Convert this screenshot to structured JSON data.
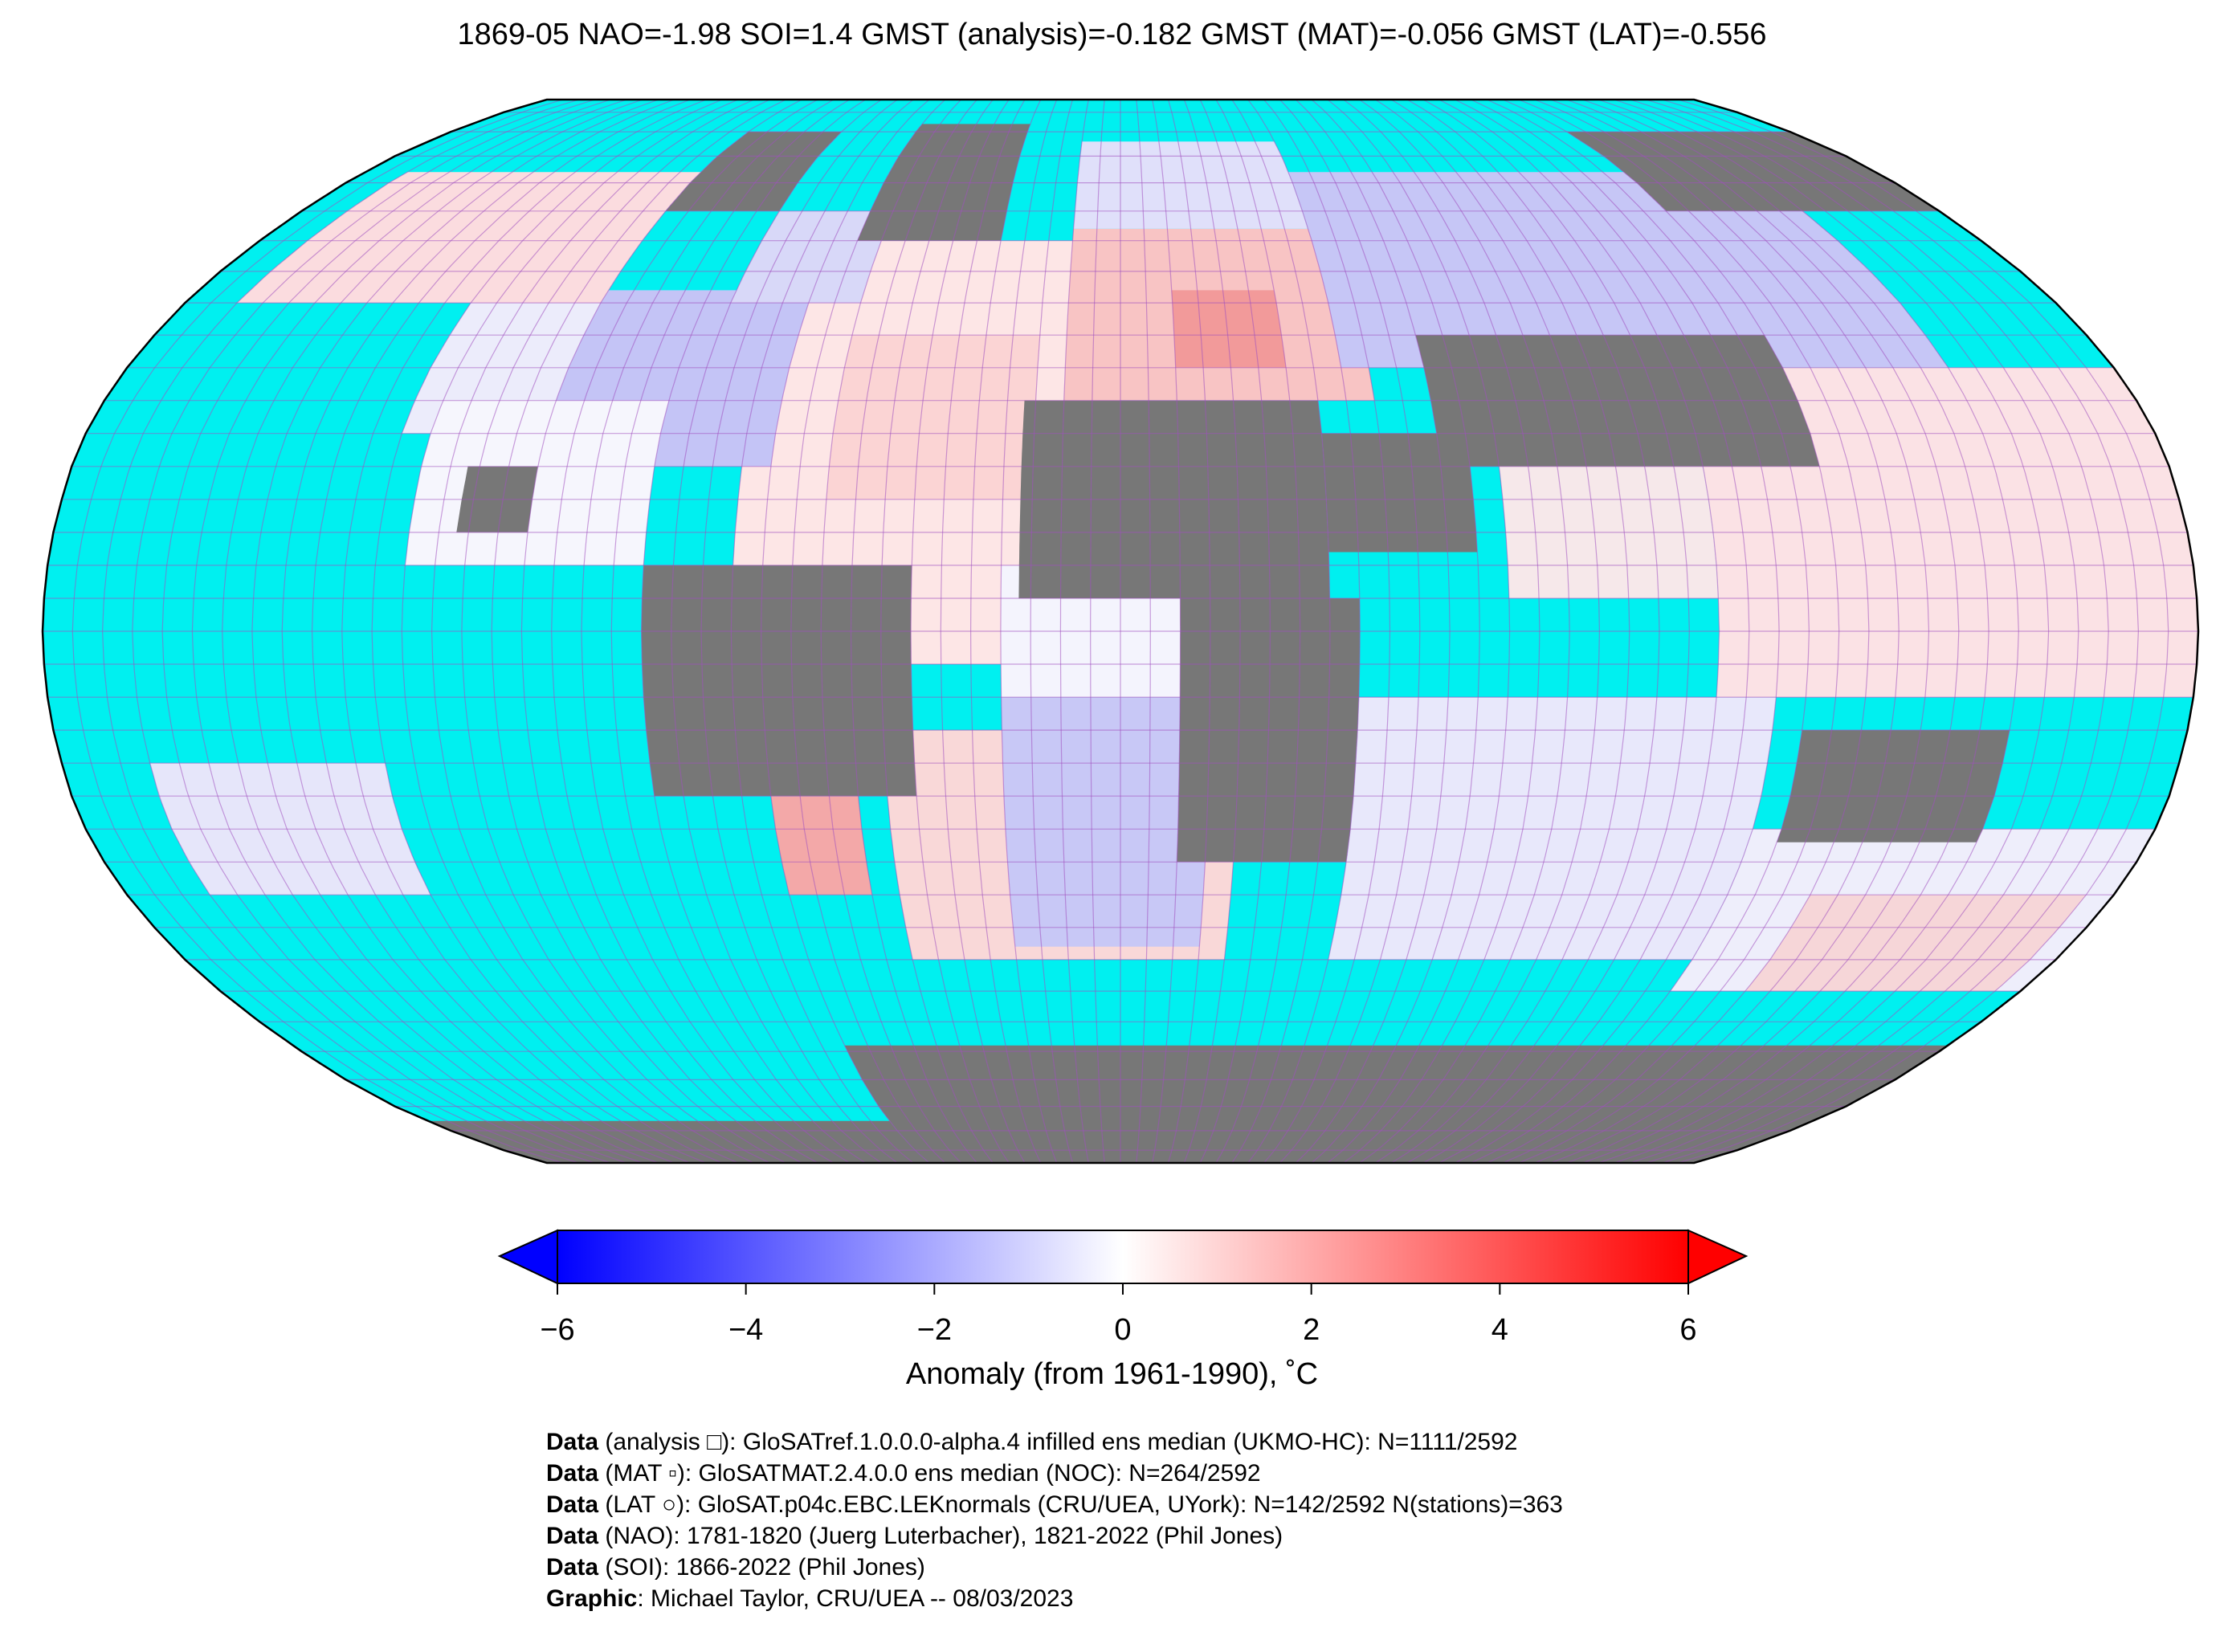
{
  "title": "1869-05 NAO=-1.98 SOI=1.4 GMST (analysis)=-0.182 GMST (MAT)=-0.056 GMST (LAT)=-0.556",
  "colors": {
    "ocean_nodata": "#00f0f0",
    "land_nodata": "#777777",
    "grid": "#a050c0",
    "cold": "#0000ff",
    "warm": "#ff0000"
  },
  "colorbar": {
    "label": "Anomaly (from 1961-1990), ˚C",
    "ticks": [
      "−6",
      "−4",
      "−2",
      "0",
      "2",
      "4",
      "6"
    ],
    "range": [
      -6,
      6
    ]
  },
  "footer": [
    {
      "bold": "Data",
      "text": " (analysis □): GloSATref.1.0.0.0-alpha.4 infilled ens median (UKMO-HC): N=1111/2592"
    },
    {
      "bold": "Data",
      "text": " (MAT ▫): GloSATMAT.2.4.0.0 ens median (NOC): N=264/2592"
    },
    {
      "bold": "Data",
      "text": " (LAT ○): GloSAT.p04c.EBC.LEKnormals (CRU/UEA, UYork): N=142/2592 N(stations)=363"
    },
    {
      "bold": "Data",
      "text": " (NAO): 1781-1820 (Juerg Luterbacher), 1821-2022 (Phil Jones)"
    },
    {
      "bold": "Data",
      "text": " (SOI): 1866-2022 (Phil Jones)"
    },
    {
      "bold": "Graphic",
      "text": ": Michael Taylor, CRU/UEA -- 08/03/2023"
    }
  ]
}
